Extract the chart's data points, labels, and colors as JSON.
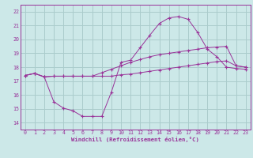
{
  "bg_color": "#cce8e8",
  "grid_color": "#aacccc",
  "line_color": "#993399",
  "spine_color": "#993399",
  "xlim": [
    -0.5,
    23.5
  ],
  "ylim": [
    13.5,
    22.5
  ],
  "xticks": [
    0,
    1,
    2,
    3,
    4,
    5,
    6,
    7,
    8,
    9,
    10,
    11,
    12,
    13,
    14,
    15,
    16,
    17,
    18,
    19,
    20,
    21,
    22,
    23
  ],
  "yticks": [
    14,
    15,
    16,
    17,
    18,
    19,
    20,
    21,
    22
  ],
  "xlabel": "Windchill (Refroidissement éolien,°C)",
  "tick_fontsize": 4.8,
  "xlabel_fontsize": 5.2,
  "line1_x": [
    0,
    1,
    2,
    3,
    4,
    5,
    6,
    7,
    8,
    9,
    10,
    11,
    12,
    13,
    14,
    15,
    16,
    17,
    18,
    19,
    20,
    21,
    22,
    23
  ],
  "line1_y": [
    17.4,
    17.55,
    17.3,
    15.5,
    15.05,
    14.85,
    14.45,
    14.45,
    14.45,
    16.2,
    18.35,
    18.5,
    19.4,
    20.3,
    21.15,
    21.55,
    21.65,
    21.45,
    20.5,
    19.3,
    18.75,
    18.0,
    17.9,
    17.85
  ],
  "line2_x": [
    0,
    1,
    2,
    3,
    4,
    5,
    6,
    7,
    8,
    9,
    10,
    11,
    12,
    13,
    14,
    15,
    16,
    17,
    18,
    19,
    20,
    21,
    22,
    23
  ],
  "line2_y": [
    17.4,
    17.55,
    17.3,
    17.35,
    17.35,
    17.35,
    17.35,
    17.35,
    17.6,
    17.85,
    18.1,
    18.35,
    18.55,
    18.75,
    18.9,
    19.0,
    19.1,
    19.2,
    19.3,
    19.4,
    19.45,
    19.5,
    18.1,
    18.0
  ],
  "line3_x": [
    0,
    1,
    2,
    3,
    4,
    5,
    6,
    7,
    8,
    9,
    10,
    11,
    12,
    13,
    14,
    15,
    16,
    17,
    18,
    19,
    20,
    21,
    22,
    23
  ],
  "line3_y": [
    17.4,
    17.55,
    17.3,
    17.35,
    17.35,
    17.35,
    17.35,
    17.35,
    17.35,
    17.35,
    17.45,
    17.5,
    17.6,
    17.7,
    17.8,
    17.9,
    18.0,
    18.1,
    18.2,
    18.3,
    18.4,
    18.45,
    18.1,
    18.0
  ]
}
